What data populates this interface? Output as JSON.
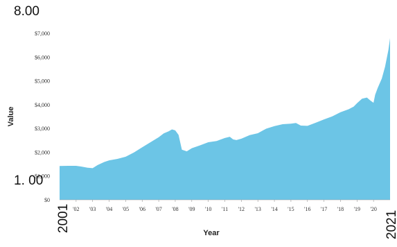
{
  "chart_data": {
    "type": "area",
    "xlabel": "Year",
    "ylabel": "Value",
    "ylim": [
      0,
      7000
    ],
    "xlim": [
      2001.0,
      2021.0
    ],
    "area_color": "#6cc5e6",
    "y_ticks": [
      {
        "value": 0,
        "label": "$0"
      },
      {
        "value": 1000,
        "label": "$1,000"
      },
      {
        "value": 2000,
        "label": "$2,000"
      },
      {
        "value": 3000,
        "label": "$3,000"
      },
      {
        "value": 4000,
        "label": "$4,000"
      },
      {
        "value": 5000,
        "label": "$5,000"
      },
      {
        "value": 6000,
        "label": "$6,000"
      },
      {
        "value": 7000,
        "label": "$7,000"
      }
    ],
    "x_ticks": [
      {
        "value": 2002,
        "label": "'02"
      },
      {
        "value": 2003,
        "label": "'03"
      },
      {
        "value": 2004,
        "label": "'04"
      },
      {
        "value": 2005,
        "label": "'05"
      },
      {
        "value": 2006,
        "label": "'06"
      },
      {
        "value": 2007,
        "label": "'07"
      },
      {
        "value": 2008,
        "label": "'08"
      },
      {
        "value": 2009,
        "label": "'09"
      },
      {
        "value": 2010,
        "label": "'10"
      },
      {
        "value": 2011,
        "label": "'11"
      },
      {
        "value": 2012,
        "label": "'12"
      },
      {
        "value": 2013,
        "label": "'13"
      },
      {
        "value": 2014,
        "label": "'14"
      },
      {
        "value": 2015,
        "label": "'15"
      },
      {
        "value": 2016,
        "label": "'16"
      },
      {
        "value": 2017,
        "label": "'17"
      },
      {
        "value": 2018,
        "label": "'18"
      },
      {
        "value": 2019,
        "label": "'19"
      },
      {
        "value": 2020,
        "label": "'20"
      }
    ],
    "x": [
      2001.0,
      2001.5,
      2002.0,
      2002.3,
      2002.7,
      2003.0,
      2003.3,
      2003.7,
      2004.0,
      2004.5,
      2005.0,
      2005.5,
      2006.0,
      2006.5,
      2007.0,
      2007.3,
      2007.6,
      2007.8,
      2008.0,
      2008.2,
      2008.4,
      2008.7,
      2009.0,
      2009.5,
      2010.0,
      2010.5,
      2011.0,
      2011.3,
      2011.5,
      2011.7,
      2012.0,
      2012.5,
      2013.0,
      2013.5,
      2014.0,
      2014.5,
      2015.0,
      2015.3,
      2015.6,
      2016.0,
      2016.5,
      2017.0,
      2017.5,
      2018.0,
      2018.5,
      2018.8,
      2019.0,
      2019.3,
      2019.6,
      2019.8,
      2020.0,
      2020.1,
      2020.25,
      2020.5,
      2020.7,
      2020.9,
      2021.0
    ],
    "values": [
      1420,
      1430,
      1430,
      1400,
      1350,
      1330,
      1460,
      1590,
      1660,
      1720,
      1810,
      1990,
      2210,
      2420,
      2630,
      2790,
      2880,
      2960,
      2920,
      2730,
      2110,
      2040,
      2170,
      2290,
      2420,
      2470,
      2600,
      2650,
      2540,
      2510,
      2570,
      2720,
      2800,
      2990,
      3100,
      3180,
      3200,
      3230,
      3120,
      3110,
      3240,
      3380,
      3510,
      3680,
      3810,
      3920,
      4060,
      4250,
      4300,
      4180,
      4080,
      4420,
      4700,
      5100,
      5600,
      6300,
      6800
    ]
  },
  "overlay": {
    "top_label": "8.00",
    "mid_label": "1. 00",
    "start_label": "2001",
    "end_label": "2021"
  }
}
